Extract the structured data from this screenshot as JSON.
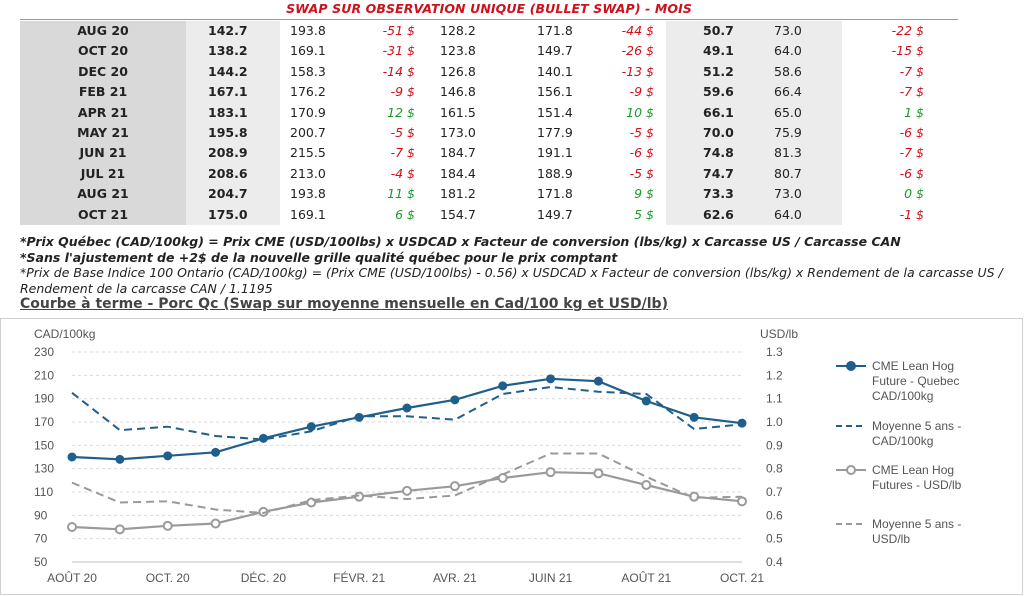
{
  "table": {
    "title": "SWAP SUR OBSERVATION UNIQUE (BULLET SWAP) - MOIS",
    "rows": [
      {
        "month": "AUG 20",
        "a1": "142.7",
        "a2": "193.8",
        "a3": "-51 $",
        "b1": "128.2",
        "b2": "171.8",
        "b3": "-44 $",
        "c1": "50.7",
        "c2": "73.0",
        "c3": "-22 $"
      },
      {
        "month": "OCT 20",
        "a1": "138.2",
        "a2": "169.1",
        "a3": "-31 $",
        "b1": "123.8",
        "b2": "149.7",
        "b3": "-26 $",
        "c1": "49.1",
        "c2": "64.0",
        "c3": "-15 $"
      },
      {
        "month": "DEC 20",
        "a1": "144.2",
        "a2": "158.3",
        "a3": "-14 $",
        "b1": "126.8",
        "b2": "140.1",
        "b3": "-13 $",
        "c1": "51.2",
        "c2": "58.6",
        "c3": "-7 $"
      },
      {
        "month": "FEB 21",
        "a1": "167.1",
        "a2": "176.2",
        "a3": "-9 $",
        "b1": "146.8",
        "b2": "156.1",
        "b3": "-9 $",
        "c1": "59.6",
        "c2": "66.4",
        "c3": "-7 $"
      },
      {
        "month": "APR 21",
        "a1": "183.1",
        "a2": "170.9",
        "a3": "12 $",
        "b1": "161.5",
        "b2": "151.4",
        "b3": "10 $",
        "c1": "66.1",
        "c2": "65.0",
        "c3": "1 $"
      },
      {
        "month": "MAY 21",
        "a1": "195.8",
        "a2": "200.7",
        "a3": "-5 $",
        "b1": "173.0",
        "b2": "177.9",
        "b3": "-5 $",
        "c1": "70.0",
        "c2": "75.9",
        "c3": "-6 $"
      },
      {
        "month": "JUN 21",
        "a1": "208.9",
        "a2": "215.5",
        "a3": "-7 $",
        "b1": "184.7",
        "b2": "191.1",
        "b3": "-6 $",
        "c1": "74.8",
        "c2": "81.3",
        "c3": "-7 $"
      },
      {
        "month": "JUL 21",
        "a1": "208.6",
        "a2": "213.0",
        "a3": "-4 $",
        "b1": "184.4",
        "b2": "188.9",
        "b3": "-5 $",
        "c1": "74.7",
        "c2": "80.7",
        "c3": "-6 $"
      },
      {
        "month": "AUG 21",
        "a1": "204.7",
        "a2": "193.8",
        "a3": "11 $",
        "b1": "181.2",
        "b2": "171.8",
        "b3": "9 $",
        "c1": "73.3",
        "c2": "73.0",
        "c3": "0 $"
      },
      {
        "month": "OCT 21",
        "a1": "175.0",
        "a2": "169.1",
        "a3": "6 $",
        "b1": "154.7",
        "b2": "149.7",
        "b3": "5 $",
        "c1": "62.6",
        "c2": "64.0",
        "c3": "-1 $"
      }
    ]
  },
  "notes": {
    "line1": "*Prix Québec (CAD/100kg) = Prix CME (USD/100lbs) x USDCAD x Facteur de conversion (lbs/kg) x Carcasse US / Carcasse CAN",
    "line2": "*Sans l'ajustement de +2$ de la nouvelle grille qualité québec pour le prix comptant",
    "line3": "*Prix de Base Indice 100 Ontario (CAD/100kg) = (Prix CME (USD/100lbs) - 0.56) x USDCAD x Facteur de conversion (lbs/kg) x Rendement de la carcasse US / Rendement de la carcasse CAN / 1.1195"
  },
  "colors": {
    "negative": "#d0101a",
    "positive": "#1a9a2a",
    "cad_series": "#1f5f8b",
    "usd_series": "#9a9a9a"
  },
  "chart_data": {
    "type": "line",
    "title": "Courbe à terme - Porc Qc (Swap sur moyenne mensuelle en Cad/100 kg et USD/lb)",
    "ylabel_left": "CAD/100kg",
    "ylabel_right": "USD/lb",
    "ylim_left": [
      50,
      230
    ],
    "ylim_right": [
      0.4,
      1.3
    ],
    "yticks_left": [
      50,
      70,
      90,
      110,
      130,
      150,
      170,
      190,
      210,
      230
    ],
    "yticks_right": [
      "0.4",
      "0.5",
      "0.6",
      "0.7",
      "0.8",
      "0.9",
      "1.0",
      "1.1",
      "1.2",
      "1.3"
    ],
    "x": [
      "AOÛT 20",
      "SEPT. 20",
      "OCT. 20",
      "NOV. 20",
      "DÉC. 20",
      "JANV. 21",
      "FÉVR. 21",
      "MARS 21",
      "AVR. 21",
      "MAI 21",
      "JUIN 21",
      "JUIL. 21",
      "AOÛT 21",
      "SEPT. 21",
      "OCT. 21"
    ],
    "xtick_labels": [
      "AOÛT 20",
      "OCT. 20",
      "DÉC. 20",
      "FÉVR. 21",
      "AVR. 21",
      "JUIN 21",
      "AOÛT 21",
      "OCT. 21"
    ],
    "grid": true,
    "legend_position": "right",
    "series": [
      {
        "name": "CME Lean Hog Future - Quebec CAD/100kg",
        "axis": "left",
        "style": "solid-marker",
        "values": [
          140,
          138,
          141,
          144,
          156,
          166,
          174,
          182,
          189,
          201,
          207,
          205,
          188,
          174,
          169
        ]
      },
      {
        "name": "Moyenne 5 ans - CAD/100kg",
        "axis": "left",
        "style": "dashed",
        "values": [
          195,
          163,
          166,
          158,
          155,
          162,
          175,
          175,
          172,
          194,
          200,
          196,
          194,
          164,
          168
        ]
      },
      {
        "name": "CME Lean Hog Futures - USD/lb",
        "axis": "right",
        "style": "solid-marker",
        "values": [
          0.55,
          0.54,
          0.555,
          0.565,
          0.615,
          0.655,
          0.68,
          0.705,
          0.725,
          0.76,
          0.785,
          0.78,
          0.73,
          0.68,
          0.66
        ]
      },
      {
        "name": "Moyenne 5 ans - USD/lb",
        "axis": "right",
        "style": "dashed",
        "values": [
          0.74,
          0.655,
          0.66,
          0.625,
          0.61,
          0.665,
          0.685,
          0.67,
          0.685,
          0.775,
          0.865,
          0.865,
          0.765,
          0.675,
          0.68
        ]
      }
    ]
  }
}
